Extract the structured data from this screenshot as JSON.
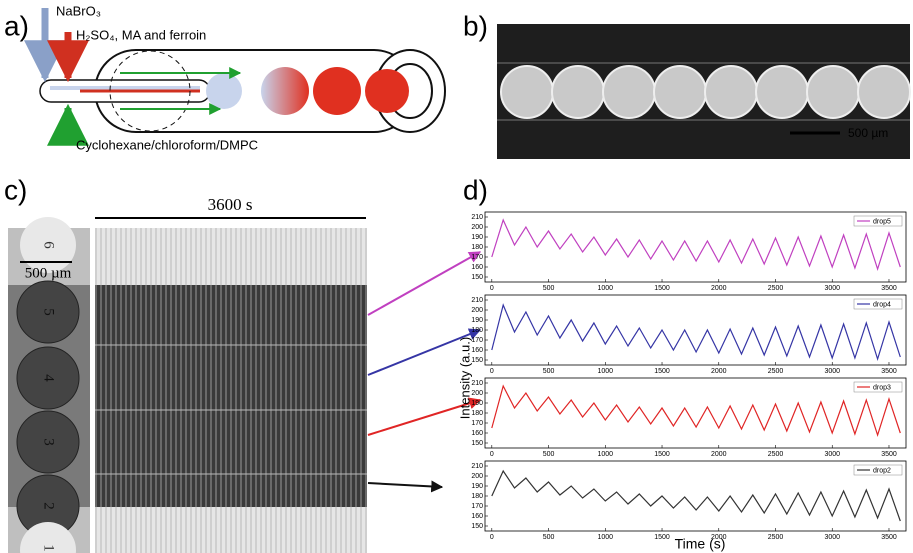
{
  "panels": {
    "a": {
      "label": "a)",
      "inlet_1": "NaBrO₃",
      "inlet_2": "H₂SO₄, MA and ferroin",
      "inlet_3": "Cyclohexane/chloroform/DMPC"
    },
    "b": {
      "label": "b)",
      "scale": "500 µm"
    },
    "c": {
      "label": "c)",
      "duration": "3600 s",
      "scale": "500 µm",
      "drops": [
        "6",
        "5",
        "4",
        "3",
        "2",
        "1"
      ]
    },
    "d": {
      "label": "d)",
      "x_label": "Time (s)",
      "y_label": "Intensity (a.u.)"
    }
  },
  "chart_data": [
    {
      "type": "line",
      "x": [
        0,
        100,
        200,
        300,
        400,
        500,
        600,
        700,
        800,
        900,
        1000,
        1100,
        1200,
        1300,
        1400,
        1500,
        1600,
        1700,
        1800,
        1900,
        2000,
        2100,
        2200,
        2300,
        2400,
        2500,
        2600,
        2700,
        2800,
        2900,
        3000,
        3100,
        3200,
        3300,
        3400,
        3500,
        3600
      ],
      "series": [
        {
          "name": "drop5",
          "color": "#c040c0",
          "values": [
            170,
            207,
            182,
            200,
            180,
            196,
            178,
            193,
            175,
            190,
            172,
            188,
            170,
            187,
            168,
            186,
            167,
            186,
            166,
            186,
            165,
            187,
            164,
            188,
            163,
            189,
            162,
            190,
            161,
            191,
            160,
            192,
            159,
            193,
            158,
            194,
            160
          ]
        }
      ],
      "xlim": [
        -60,
        3650
      ],
      "ylim": [
        145,
        215
      ],
      "xticks": [
        0,
        500,
        1000,
        1500,
        2000,
        2500,
        3000,
        3500
      ],
      "yticks": [
        150,
        160,
        170,
        180,
        190,
        200,
        210
      ],
      "legend": "upper right"
    },
    {
      "type": "line",
      "x": [
        0,
        100,
        200,
        300,
        400,
        500,
        600,
        700,
        800,
        900,
        1000,
        1100,
        1200,
        1300,
        1400,
        1500,
        1600,
        1700,
        1800,
        1900,
        2000,
        2100,
        2200,
        2300,
        2400,
        2500,
        2600,
        2700,
        2800,
        2900,
        3000,
        3100,
        3200,
        3300,
        3400,
        3500,
        3600
      ],
      "series": [
        {
          "name": "drop4",
          "color": "#3535a5",
          "values": [
            160,
            205,
            178,
            198,
            175,
            194,
            172,
            190,
            169,
            187,
            166,
            184,
            164,
            182,
            162,
            180,
            160,
            180,
            158,
            180,
            157,
            181,
            156,
            182,
            155,
            183,
            154,
            184,
            153,
            185,
            152,
            186,
            152,
            187,
            151,
            188,
            153
          ]
        }
      ],
      "xlim": [
        -60,
        3650
      ],
      "ylim": [
        145,
        215
      ],
      "xticks": [
        0,
        500,
        1000,
        1500,
        2000,
        2500,
        3000,
        3500
      ],
      "yticks": [
        150,
        160,
        170,
        180,
        190,
        200,
        210
      ],
      "legend": "upper right"
    },
    {
      "type": "line",
      "x": [
        0,
        100,
        200,
        300,
        400,
        500,
        600,
        700,
        800,
        900,
        1000,
        1100,
        1200,
        1300,
        1400,
        1500,
        1600,
        1700,
        1800,
        1900,
        2000,
        2100,
        2200,
        2300,
        2400,
        2500,
        2600,
        2700,
        2800,
        2900,
        3000,
        3100,
        3200,
        3300,
        3400,
        3500,
        3600
      ],
      "series": [
        {
          "name": "drop3",
          "color": "#e02525",
          "values": [
            165,
            207,
            185,
            200,
            182,
            196,
            179,
            193,
            176,
            190,
            173,
            188,
            171,
            186,
            169,
            185,
            167,
            185,
            166,
            186,
            165,
            187,
            164,
            188,
            163,
            189,
            162,
            190,
            161,
            191,
            160,
            192,
            159,
            193,
            158,
            194,
            160
          ]
        }
      ],
      "xlim": [
        -60,
        3650
      ],
      "ylim": [
        145,
        215
      ],
      "xticks": [
        0,
        500,
        1000,
        1500,
        2000,
        2500,
        3000,
        3500
      ],
      "yticks": [
        150,
        160,
        170,
        180,
        190,
        200,
        210
      ],
      "legend": "upper right"
    },
    {
      "type": "line",
      "x": [
        0,
        100,
        200,
        300,
        400,
        500,
        600,
        700,
        800,
        900,
        1000,
        1100,
        1200,
        1300,
        1400,
        1500,
        1600,
        1700,
        1800,
        1900,
        2000,
        2100,
        2200,
        2300,
        2400,
        2500,
        2600,
        2700,
        2800,
        2900,
        3000,
        3100,
        3200,
        3300,
        3400,
        3500,
        3600
      ],
      "series": [
        {
          "name": "drop2",
          "color": "#333333",
          "values": [
            180,
            205,
            188,
            198,
            184,
            194,
            181,
            190,
            178,
            187,
            175,
            184,
            172,
            182,
            170,
            180,
            168,
            179,
            166,
            179,
            165,
            180,
            164,
            181,
            163,
            182,
            162,
            183,
            161,
            184,
            160,
            185,
            159,
            186,
            158,
            187,
            155
          ]
        }
      ],
      "xlim": [
        -60,
        3650
      ],
      "ylim": [
        145,
        215
      ],
      "xticks": [
        0,
        500,
        1000,
        1500,
        2000,
        2500,
        3000,
        3500
      ],
      "yticks": [
        150,
        160,
        170,
        180,
        190,
        200,
        210
      ],
      "legend": "upper right"
    }
  ]
}
